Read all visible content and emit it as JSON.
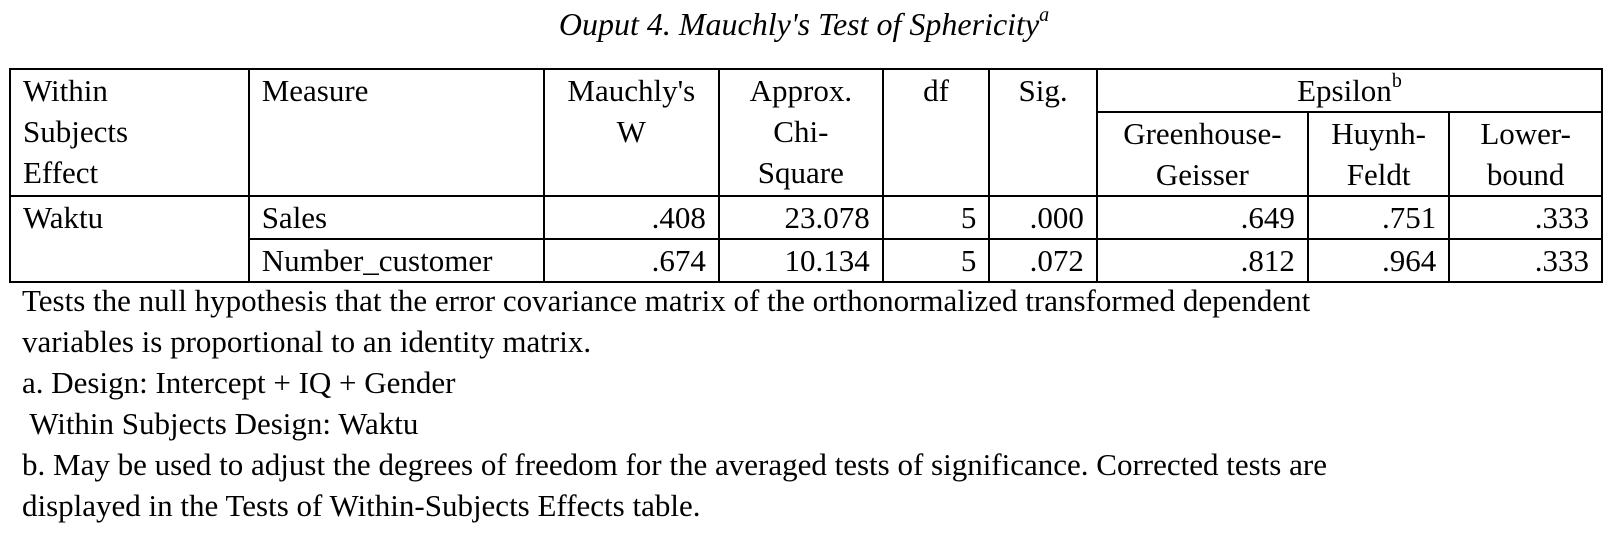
{
  "caption": {
    "title": "Ouput 4. Mauchly's Test of Sphericity",
    "superscript": "a"
  },
  "table": {
    "headers": {
      "effect": [
        "Within",
        "Subjects",
        "Effect"
      ],
      "measure": "Measure",
      "mauchly_w": [
        "Mauchly's",
        "W"
      ],
      "chi_square": [
        "Approx.",
        "Chi-",
        "Square"
      ],
      "df": "df",
      "sig": "Sig.",
      "epsilon": "Epsilon",
      "epsilon_superscript": "b",
      "greenhouse_geisser": [
        "Greenhouse-",
        "Geisser"
      ],
      "huynh_feldt": [
        "Huynh-",
        "Feldt"
      ],
      "lower_bound": [
        "Lower-",
        "bound"
      ]
    },
    "effect": "Waktu",
    "rows": [
      {
        "measure": "Sales",
        "mauchly_w": ".408",
        "chi_square": "23.078",
        "df": "5",
        "sig": ".000",
        "greenhouse_geisser": ".649",
        "huynh_feldt": ".751",
        "lower_bound": ".333"
      },
      {
        "measure": "Number_customer",
        "mauchly_w": ".674",
        "chi_square": "10.134",
        "df": "5",
        "sig": ".072",
        "greenhouse_geisser": ".812",
        "huynh_feldt": ".964",
        "lower_bound": ".333"
      }
    ]
  },
  "footnotes": [
    "Tests the null hypothesis that the error covariance matrix of the orthonormalized transformed dependent",
    "variables is proportional to an identity matrix.",
    "a. Design: Intercept + IQ + Gender",
    " Within Subjects Design: Waktu",
    "b. May be used to adjust the degrees of freedom for the averaged tests of significance. Corrected tests are",
    "displayed in the Tests of Within-Subjects Effects table."
  ]
}
